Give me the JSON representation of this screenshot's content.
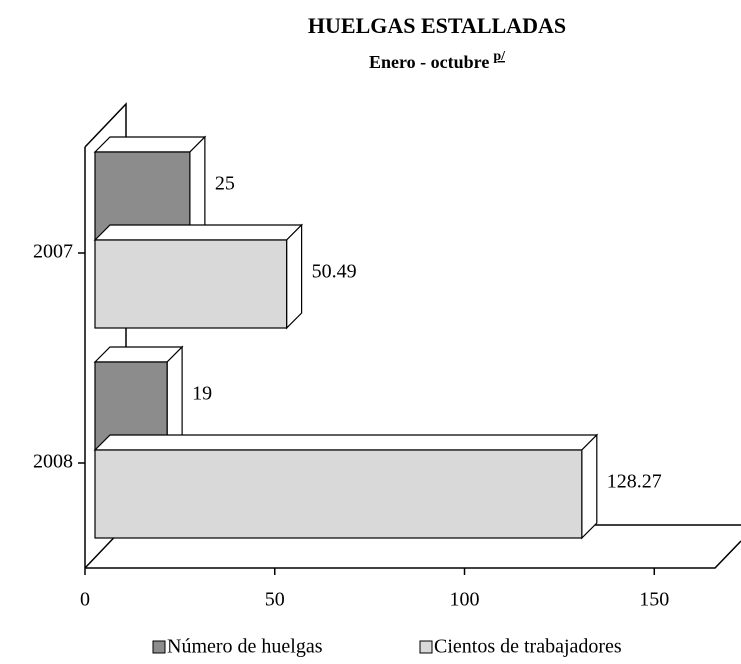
{
  "chart_data": {
    "type": "bar3d_horizontal",
    "title": "HUELGAS ESTALLADAS",
    "subtitle": "Enero - octubre",
    "subtitle_note": "p/",
    "categories": [
      "2007",
      "2008"
    ],
    "series": [
      {
        "name": "Número de huelgas",
        "color": "#8c8c8c",
        "values": [
          25,
          19
        ]
      },
      {
        "name": "Cientos de trabajadores",
        "color": "#d9d9d9",
        "values": [
          50.49,
          128.27
        ]
      }
    ],
    "xlim": [
      0,
      166
    ],
    "xticks": [
      0,
      50,
      100,
      150
    ]
  }
}
